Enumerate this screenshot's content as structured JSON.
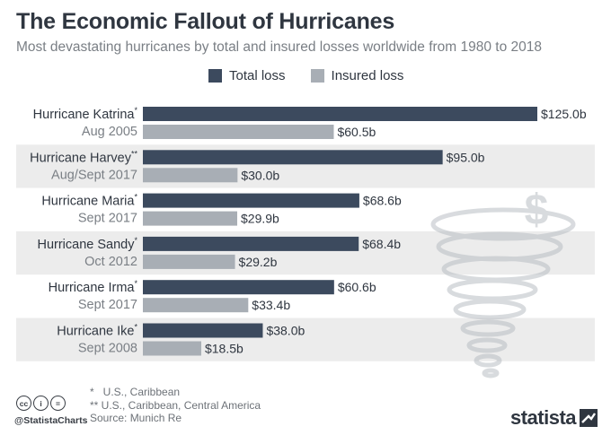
{
  "title": "The Economic Fallout of Hurricanes",
  "subtitle": "Most devastating hurricanes by total and insured losses worldwide from 1980 to 2018",
  "colors": {
    "total": "#3c4a5e",
    "insured": "#a8aeb5",
    "band": "#ececec",
    "text": "#2f3640",
    "muted": "#7a7f85"
  },
  "chart_data": {
    "type": "bar",
    "orientation": "horizontal",
    "title": "The Economic Fallout of Hurricanes",
    "categories": [
      {
        "name": "Hurricane Katrina",
        "mark": "*",
        "date": "Aug 2005"
      },
      {
        "name": "Hurricane Harvey",
        "mark": "**",
        "date": "Aug/Sept 2017"
      },
      {
        "name": "Hurricane Maria",
        "mark": "*",
        "date": "Sept 2017"
      },
      {
        "name": "Hurricane Sandy",
        "mark": "*",
        "date": "Oct 2012"
      },
      {
        "name": "Hurricane Irma",
        "mark": "*",
        "date": "Sept 2017"
      },
      {
        "name": "Hurricane Ike",
        "mark": "*",
        "date": "Sept 2008"
      }
    ],
    "series": [
      {
        "name": "Total loss",
        "values": [
          125.0,
          95.0,
          68.6,
          68.4,
          60.6,
          38.0
        ],
        "labels": [
          "$125.0b",
          "$95.0b",
          "$68.6b",
          "$68.4b",
          "$60.6b",
          "$38.0b"
        ]
      },
      {
        "name": "Insured loss",
        "values": [
          60.5,
          30.0,
          29.9,
          29.2,
          33.4,
          18.5
        ],
        "labels": [
          "$60.5b",
          "$30.0b",
          "$29.9b",
          "$29.2b",
          "$33.4b",
          "$18.5b"
        ]
      }
    ],
    "xlim": [
      0,
      125
    ],
    "unit": "billion USD"
  },
  "footnotes": {
    "single": "*   U.S., Caribbean",
    "double": "** U.S., Caribbean, Central America",
    "source": "Source: Munich Re"
  },
  "footer": {
    "handle": "@StatistaCharts",
    "brand": "statista",
    "license_icons": [
      "cc-icon",
      "attribution-icon",
      "equals-icon"
    ],
    "license_glyphs": [
      "cc",
      "i",
      "="
    ]
  }
}
